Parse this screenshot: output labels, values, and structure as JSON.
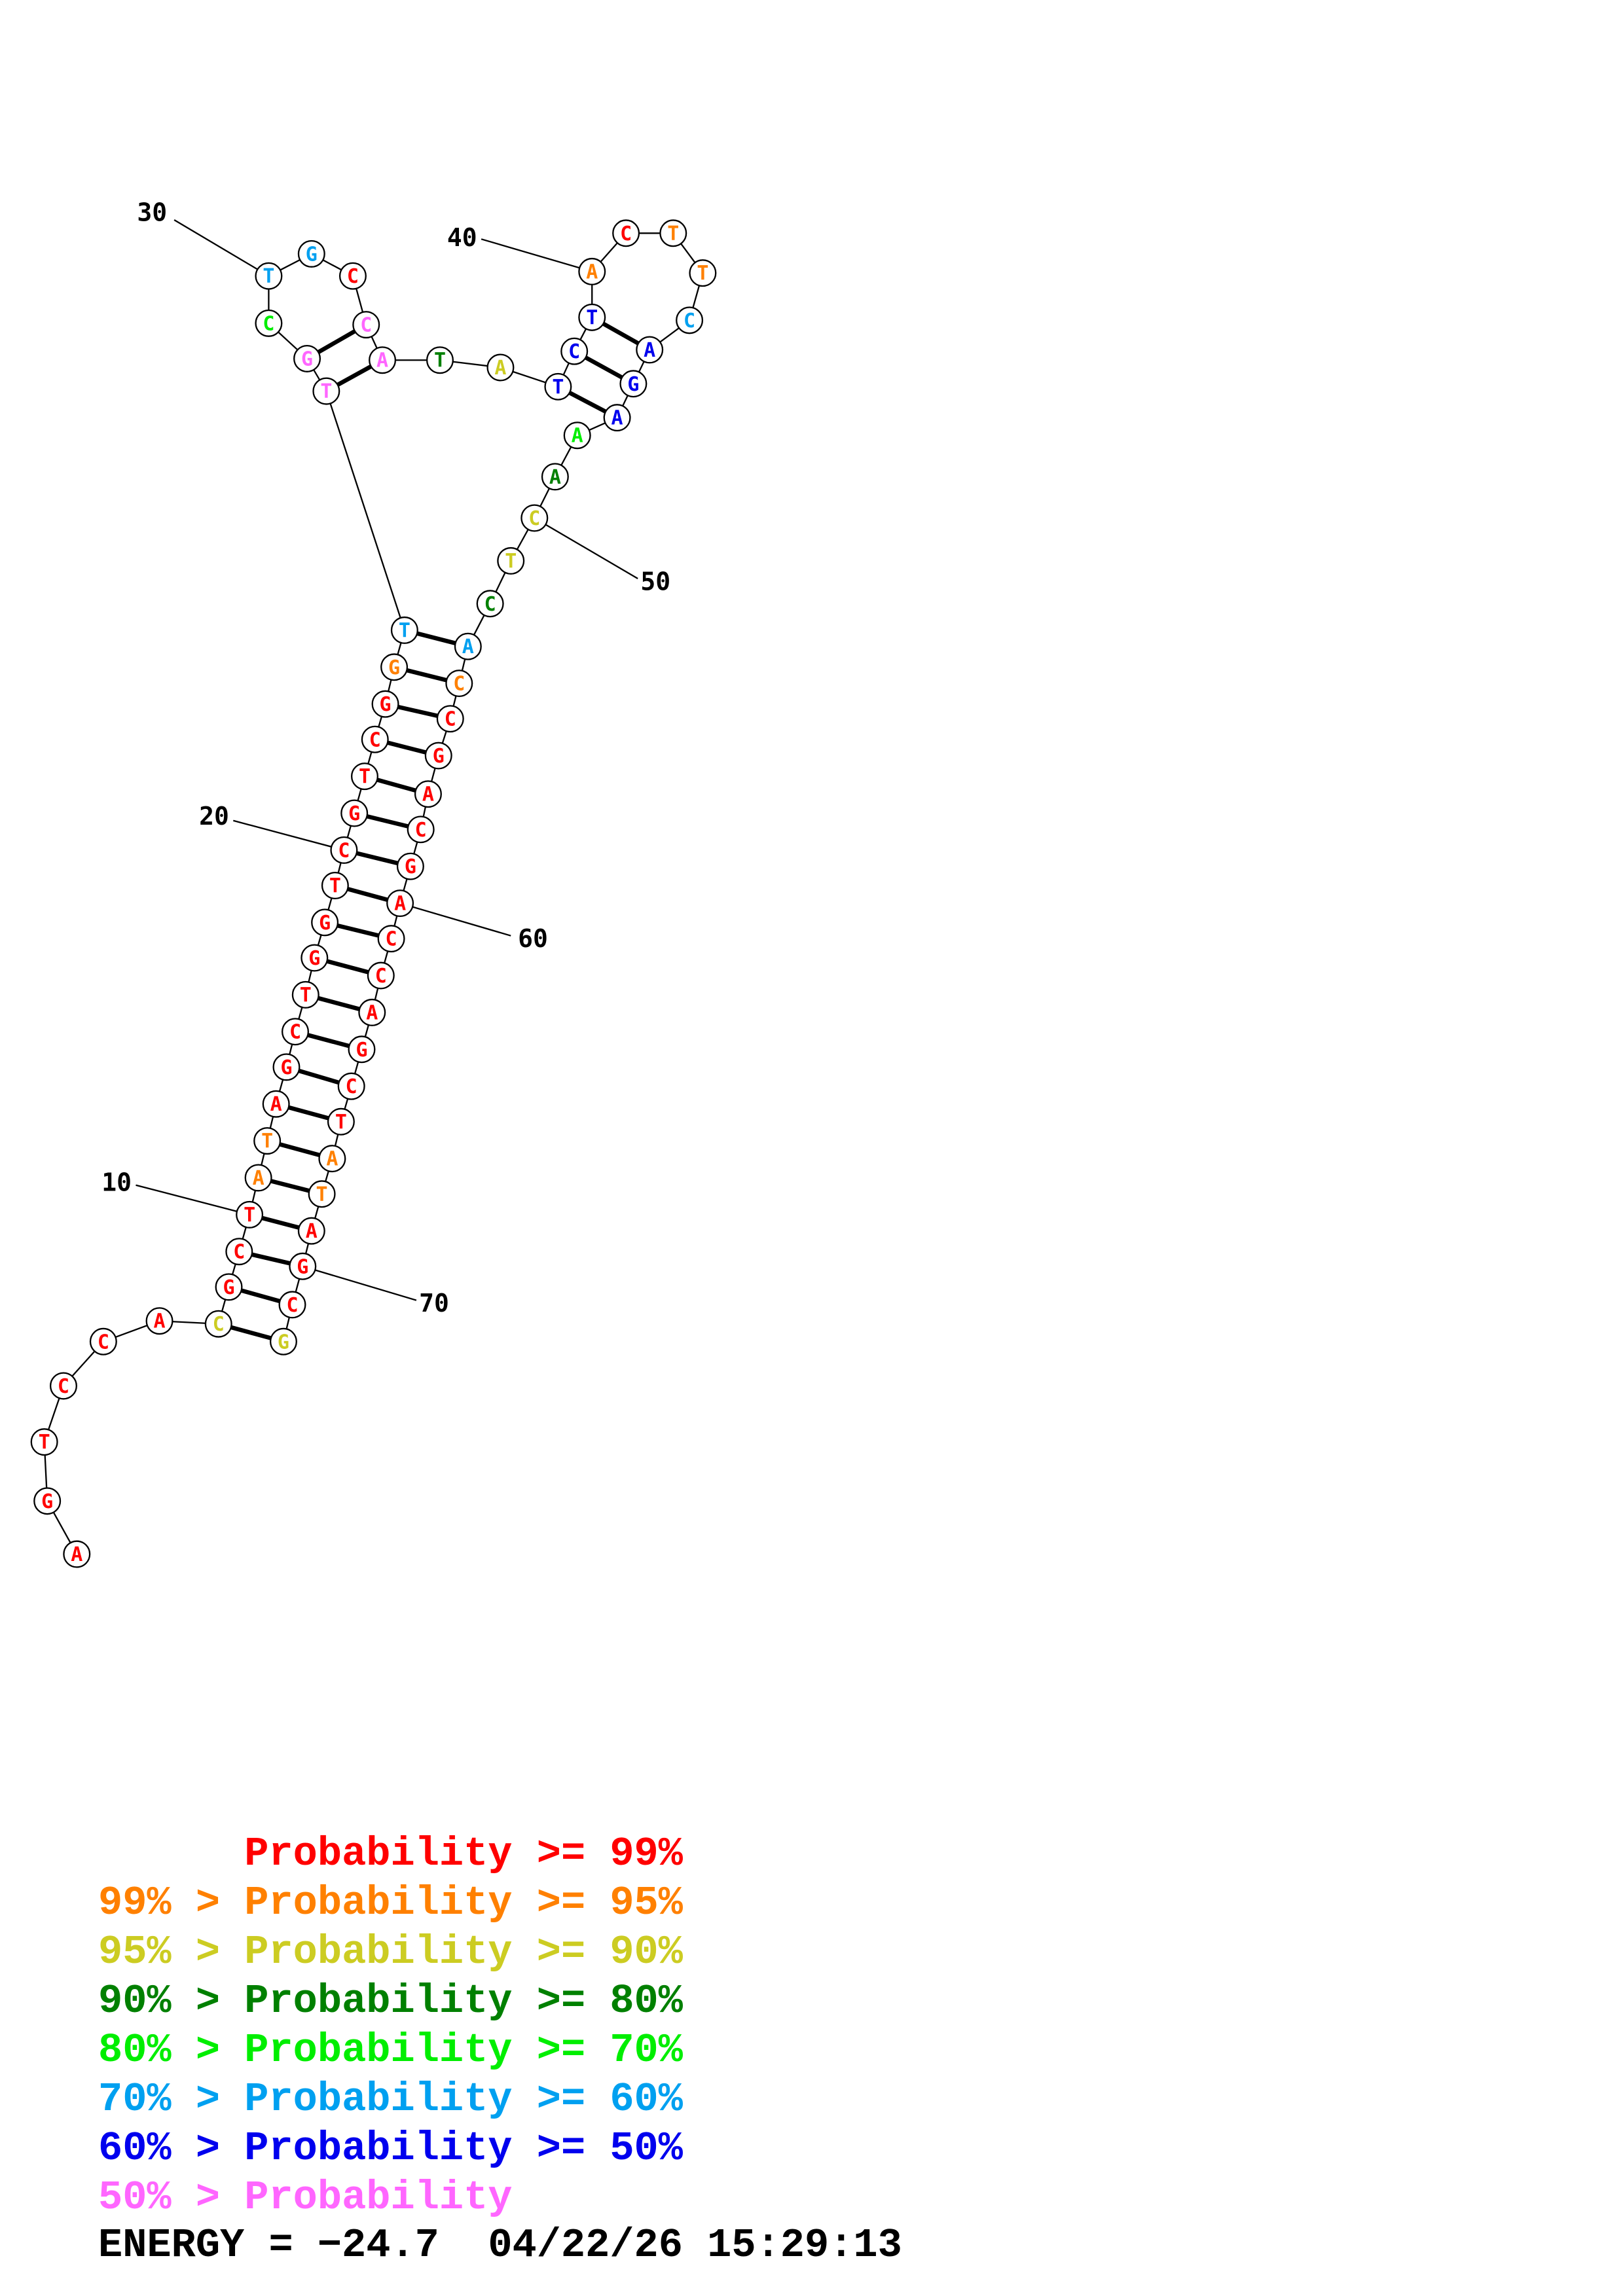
{
  "colors": {
    "red": "#ff0000",
    "orange": "#ff8000",
    "yellow": "#cccc22",
    "dark_green": "#008000",
    "green": "#00ee00",
    "sky": "#00a0f0",
    "blue": "#0000ee",
    "pink": "#ff66ff"
  },
  "structure": {
    "nucleotides": [
      {
        "n": 1,
        "base": "A",
        "color": "red"
      },
      {
        "n": 2,
        "base": "G",
        "color": "red"
      },
      {
        "n": 3,
        "base": "T",
        "color": "red"
      },
      {
        "n": 4,
        "base": "C",
        "color": "red"
      },
      {
        "n": 5,
        "base": "C",
        "color": "red"
      },
      {
        "n": 6,
        "base": "A",
        "color": "red"
      },
      {
        "n": 7,
        "base": "C",
        "color": "yellow"
      },
      {
        "n": 8,
        "base": "G",
        "color": "red"
      },
      {
        "n": 9,
        "base": "C",
        "color": "red"
      },
      {
        "n": 10,
        "base": "T",
        "color": "red"
      },
      {
        "n": 11,
        "base": "A",
        "color": "orange"
      },
      {
        "n": 12,
        "base": "T",
        "color": "orange"
      },
      {
        "n": 13,
        "base": "A",
        "color": "red"
      },
      {
        "n": 14,
        "base": "G",
        "color": "red"
      },
      {
        "n": 15,
        "base": "C",
        "color": "red"
      },
      {
        "n": 16,
        "base": "T",
        "color": "red"
      },
      {
        "n": 17,
        "base": "G",
        "color": "red"
      },
      {
        "n": 18,
        "base": "G",
        "color": "red"
      },
      {
        "n": 19,
        "base": "T",
        "color": "red"
      },
      {
        "n": 20,
        "base": "C",
        "color": "red"
      },
      {
        "n": 21,
        "base": "G",
        "color": "red"
      },
      {
        "n": 22,
        "base": "T",
        "color": "red"
      },
      {
        "n": 23,
        "base": "C",
        "color": "red"
      },
      {
        "n": 24,
        "base": "G",
        "color": "red"
      },
      {
        "n": 25,
        "base": "G",
        "color": "orange"
      },
      {
        "n": 26,
        "base": "T",
        "color": "sky"
      },
      {
        "n": 27,
        "base": "T",
        "color": "pink"
      },
      {
        "n": 28,
        "base": "G",
        "color": "pink"
      },
      {
        "n": 29,
        "base": "C",
        "color": "green"
      },
      {
        "n": 30,
        "base": "T",
        "color": "sky"
      },
      {
        "n": 31,
        "base": "G",
        "color": "sky"
      },
      {
        "n": 32,
        "base": "C",
        "color": "red"
      },
      {
        "n": 33,
        "base": "C",
        "color": "pink"
      },
      {
        "n": 34,
        "base": "A",
        "color": "pink"
      },
      {
        "n": 35,
        "base": "T",
        "color": "dark_green"
      },
      {
        "n": 36,
        "base": "A",
        "color": "yellow"
      },
      {
        "n": 37,
        "base": "T",
        "color": "blue"
      },
      {
        "n": 38,
        "base": "C",
        "color": "blue"
      },
      {
        "n": 39,
        "base": "T",
        "color": "blue"
      },
      {
        "n": 40,
        "base": "A",
        "color": "orange"
      },
      {
        "n": 41,
        "base": "C",
        "color": "red"
      },
      {
        "n": 42,
        "base": "T",
        "color": "orange"
      },
      {
        "n": 43,
        "base": "T",
        "color": "orange"
      },
      {
        "n": 44,
        "base": "C",
        "color": "sky"
      },
      {
        "n": 45,
        "base": "A",
        "color": "blue"
      },
      {
        "n": 46,
        "base": "G",
        "color": "blue"
      },
      {
        "n": 47,
        "base": "A",
        "color": "blue"
      },
      {
        "n": 48,
        "base": "A",
        "color": "green"
      },
      {
        "n": 49,
        "base": "A",
        "color": "dark_green"
      },
      {
        "n": 50,
        "base": "C",
        "color": "yellow"
      },
      {
        "n": 51,
        "base": "T",
        "color": "yellow"
      },
      {
        "n": 52,
        "base": "C",
        "color": "dark_green"
      },
      {
        "n": 53,
        "base": "A",
        "color": "sky"
      },
      {
        "n": 54,
        "base": "C",
        "color": "orange"
      },
      {
        "n": 55,
        "base": "C",
        "color": "red"
      },
      {
        "n": 56,
        "base": "G",
        "color": "red"
      },
      {
        "n": 57,
        "base": "A",
        "color": "red"
      },
      {
        "n": 58,
        "base": "C",
        "color": "red"
      },
      {
        "n": 59,
        "base": "G",
        "color": "red"
      },
      {
        "n": 60,
        "base": "A",
        "color": "red"
      },
      {
        "n": 61,
        "base": "C",
        "color": "red"
      },
      {
        "n": 62,
        "base": "C",
        "color": "red"
      },
      {
        "n": 63,
        "base": "A",
        "color": "red"
      },
      {
        "n": 64,
        "base": "G",
        "color": "red"
      },
      {
        "n": 65,
        "base": "C",
        "color": "red"
      },
      {
        "n": 66,
        "base": "T",
        "color": "red"
      },
      {
        "n": 67,
        "base": "A",
        "color": "orange"
      },
      {
        "n": 68,
        "base": "T",
        "color": "orange"
      },
      {
        "n": 69,
        "base": "A",
        "color": "red"
      },
      {
        "n": 70,
        "base": "G",
        "color": "red"
      },
      {
        "n": 71,
        "base": "C",
        "color": "red"
      },
      {
        "n": 72,
        "base": "G",
        "color": "yellow"
      }
    ],
    "pairs": [
      [
        7,
        72
      ],
      [
        8,
        71
      ],
      [
        9,
        70
      ],
      [
        10,
        69
      ],
      [
        11,
        68
      ],
      [
        12,
        67
      ],
      [
        13,
        66
      ],
      [
        14,
        65
      ],
      [
        15,
        64
      ],
      [
        16,
        63
      ],
      [
        17,
        62
      ],
      [
        18,
        61
      ],
      [
        19,
        60
      ],
      [
        20,
        59
      ],
      [
        21,
        58
      ],
      [
        22,
        57
      ],
      [
        23,
        56
      ],
      [
        24,
        55
      ],
      [
        25,
        54
      ],
      [
        26,
        53
      ],
      [
        27,
        34
      ],
      [
        28,
        33
      ],
      [
        37,
        47
      ],
      [
        38,
        46
      ],
      [
        39,
        45
      ]
    ],
    "position_labels": [
      {
        "text": "10",
        "n": 10
      },
      {
        "text": "20",
        "n": 20
      },
      {
        "text": "30",
        "n": 30
      },
      {
        "text": "40",
        "n": 40
      },
      {
        "text": "50",
        "n": 50
      },
      {
        "text": "60",
        "n": 60
      },
      {
        "text": "70",
        "n": 70
      }
    ]
  },
  "legend": [
    {
      "prefix": "    ",
      "label": "Probability",
      "suffix": " >= 99%",
      "color": "red"
    },
    {
      "prefix": "99% > ",
      "label": "Probability",
      "suffix": " >= 95%",
      "color": "orange"
    },
    {
      "prefix": "95% > ",
      "label": "Probability",
      "suffix": " >= 90%",
      "color": "yellow"
    },
    {
      "prefix": "90% > ",
      "label": "Probability",
      "suffix": " >= 80%",
      "color": "dark_green"
    },
    {
      "prefix": "80% > ",
      "label": "Probability",
      "suffix": " >= 70%",
      "color": "green"
    },
    {
      "prefix": "70% > ",
      "label": "Probability",
      "suffix": " >= 60%",
      "color": "sky"
    },
    {
      "prefix": "60% > ",
      "label": "Probability",
      "suffix": " >= 50%",
      "color": "blue"
    },
    {
      "prefix": "50% > ",
      "label": "Probability",
      "suffix": "",
      "color": "pink"
    }
  ],
  "footer": {
    "energy": "ENERGY = −24.7",
    "datetime": "04/22/26 15:29:13"
  }
}
